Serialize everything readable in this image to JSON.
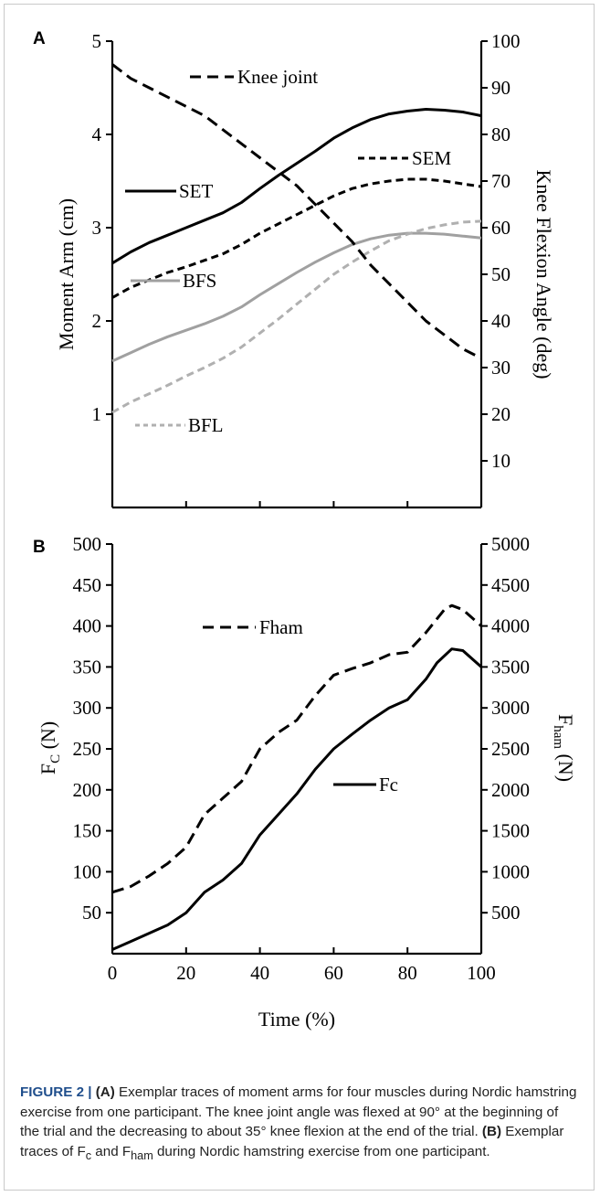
{
  "chart_data": [
    {
      "panel_label": "A",
      "type": "line",
      "xlim": [
        0,
        100
      ],
      "x_ticks": [
        0,
        20,
        40,
        60,
        80,
        100
      ],
      "ylabel_left": "Moment Arm (cm)",
      "ylabel_right": "Knee Flexion Angle (deg)",
      "ylim_left": [
        0,
        5
      ],
      "ylim_right": [
        0,
        100
      ],
      "yticks_left": [
        "1",
        "2",
        "3",
        "4",
        "5"
      ],
      "yticks_right": [
        "10",
        "20",
        "30",
        "40",
        "50",
        "60",
        "70",
        "80",
        "90",
        "100"
      ],
      "series": [
        {
          "name": "SET",
          "axis": "left",
          "style": "solid",
          "color": "#000000",
          "x": [
            0,
            5,
            10,
            15,
            20,
            25,
            30,
            35,
            40,
            45,
            50,
            55,
            60,
            65,
            70,
            75,
            80,
            85,
            90,
            95,
            100
          ],
          "y": [
            2.62,
            2.74,
            2.84,
            2.92,
            3.0,
            3.08,
            3.16,
            3.27,
            3.42,
            3.56,
            3.69,
            3.82,
            3.96,
            4.07,
            4.16,
            4.22,
            4.25,
            4.27,
            4.26,
            4.24,
            4.2
          ]
        },
        {
          "name": "SEM",
          "axis": "left",
          "style": "dashed",
          "color": "#000000",
          "x": [
            0,
            5,
            10,
            15,
            20,
            25,
            30,
            35,
            40,
            45,
            50,
            55,
            60,
            65,
            70,
            75,
            80,
            85,
            90,
            95,
            100
          ],
          "y": [
            2.25,
            2.36,
            2.44,
            2.52,
            2.58,
            2.65,
            2.72,
            2.82,
            2.94,
            3.04,
            3.14,
            3.24,
            3.34,
            3.42,
            3.47,
            3.5,
            3.52,
            3.52,
            3.5,
            3.47,
            3.44
          ]
        },
        {
          "name": "BFS",
          "axis": "left",
          "style": "solid",
          "color": "#a0a0a0",
          "x": [
            0,
            5,
            10,
            15,
            20,
            25,
            30,
            35,
            40,
            45,
            50,
            55,
            60,
            65,
            70,
            75,
            80,
            85,
            90,
            95,
            100
          ],
          "y": [
            1.57,
            1.66,
            1.75,
            1.83,
            1.9,
            1.97,
            2.05,
            2.15,
            2.28,
            2.4,
            2.52,
            2.63,
            2.73,
            2.82,
            2.88,
            2.92,
            2.94,
            2.94,
            2.93,
            2.91,
            2.89
          ]
        },
        {
          "name": "BFL",
          "axis": "left",
          "style": "dashed",
          "color": "#b0b0b0",
          "x": [
            0,
            5,
            10,
            15,
            20,
            25,
            30,
            35,
            40,
            45,
            50,
            55,
            60,
            65,
            70,
            75,
            80,
            85,
            90,
            95,
            100
          ],
          "y": [
            1.02,
            1.13,
            1.22,
            1.31,
            1.41,
            1.5,
            1.6,
            1.72,
            1.87,
            2.02,
            2.18,
            2.34,
            2.5,
            2.63,
            2.75,
            2.86,
            2.93,
            2.99,
            3.03,
            3.06,
            3.07
          ]
        },
        {
          "name": "Knee joint",
          "axis": "right",
          "style": "dashed",
          "color": "#000000",
          "x": [
            0,
            5,
            10,
            15,
            20,
            25,
            30,
            35,
            40,
            45,
            50,
            55,
            60,
            65,
            70,
            75,
            80,
            85,
            90,
            95,
            100
          ],
          "y": [
            95,
            92,
            90,
            88,
            86,
            84,
            81,
            78,
            75,
            72,
            69,
            65,
            61,
            57,
            52,
            48,
            44,
            40,
            37,
            34,
            32
          ]
        }
      ]
    },
    {
      "panel_label": "B",
      "type": "line",
      "xlim": [
        0,
        100
      ],
      "x_ticks": [
        "0",
        "20",
        "40",
        "60",
        "80",
        "100"
      ],
      "xlabel": "Time (%)",
      "ylabel_left": "FC (N)",
      "ylabel_left_main": "F",
      "ylabel_left_sub": "C",
      "ylabel_left_unit": " (N)",
      "ylabel_right": "Fham (N)",
      "ylabel_right_main": "F",
      "ylabel_right_sub": "ham",
      "ylabel_right_unit": " (N)",
      "ylim_left": [
        0,
        500
      ],
      "ylim_right": [
        0,
        5000
      ],
      "yticks_left": [
        "50",
        "100",
        "150",
        "200",
        "250",
        "300",
        "350",
        "400",
        "450",
        "500"
      ],
      "yticks_right": [
        "500",
        "1000",
        "1500",
        "2000",
        "2500",
        "3000",
        "3500",
        "4000",
        "4500",
        "5000"
      ],
      "series": [
        {
          "name": "Fham",
          "axis": "left",
          "style": "dashed",
          "color": "#000000",
          "x": [
            0,
            5,
            10,
            15,
            20,
            25,
            30,
            35,
            40,
            45,
            50,
            55,
            60,
            65,
            70,
            75,
            80,
            85,
            90,
            92,
            95,
            100
          ],
          "y": [
            75,
            82,
            95,
            110,
            130,
            170,
            190,
            210,
            250,
            270,
            285,
            315,
            340,
            348,
            355,
            365,
            368,
            392,
            420,
            425,
            420,
            400
          ]
        },
        {
          "name": "Fc",
          "axis": "left",
          "style": "solid",
          "color": "#000000",
          "x": [
            0,
            5,
            10,
            15,
            20,
            25,
            30,
            35,
            40,
            45,
            50,
            55,
            60,
            65,
            70,
            75,
            80,
            85,
            88,
            92,
            95,
            100
          ],
          "y": [
            5,
            15,
            25,
            35,
            50,
            75,
            90,
            110,
            145,
            170,
            195,
            225,
            250,
            268,
            285,
            300,
            310,
            335,
            355,
            372,
            370,
            350
          ]
        }
      ]
    }
  ],
  "caption": {
    "label": "FIGURE 2 | ",
    "seg1_bold": "(A)",
    "seg1": " Exemplar traces of moment arms for four muscles during Nordic hamstring exercise from one participant. The knee joint angle was flexed at 90° at the beginning of the trial and the decreasing to about 35° knee flexion at the end of the trial. ",
    "seg2_bold": "(B)",
    "seg2": " Exemplar traces of F",
    "sub_c": "c",
    "seg3": " and F",
    "sub_ham": "ham",
    "seg4": " during Nordic hamstring exercise from one participant."
  }
}
